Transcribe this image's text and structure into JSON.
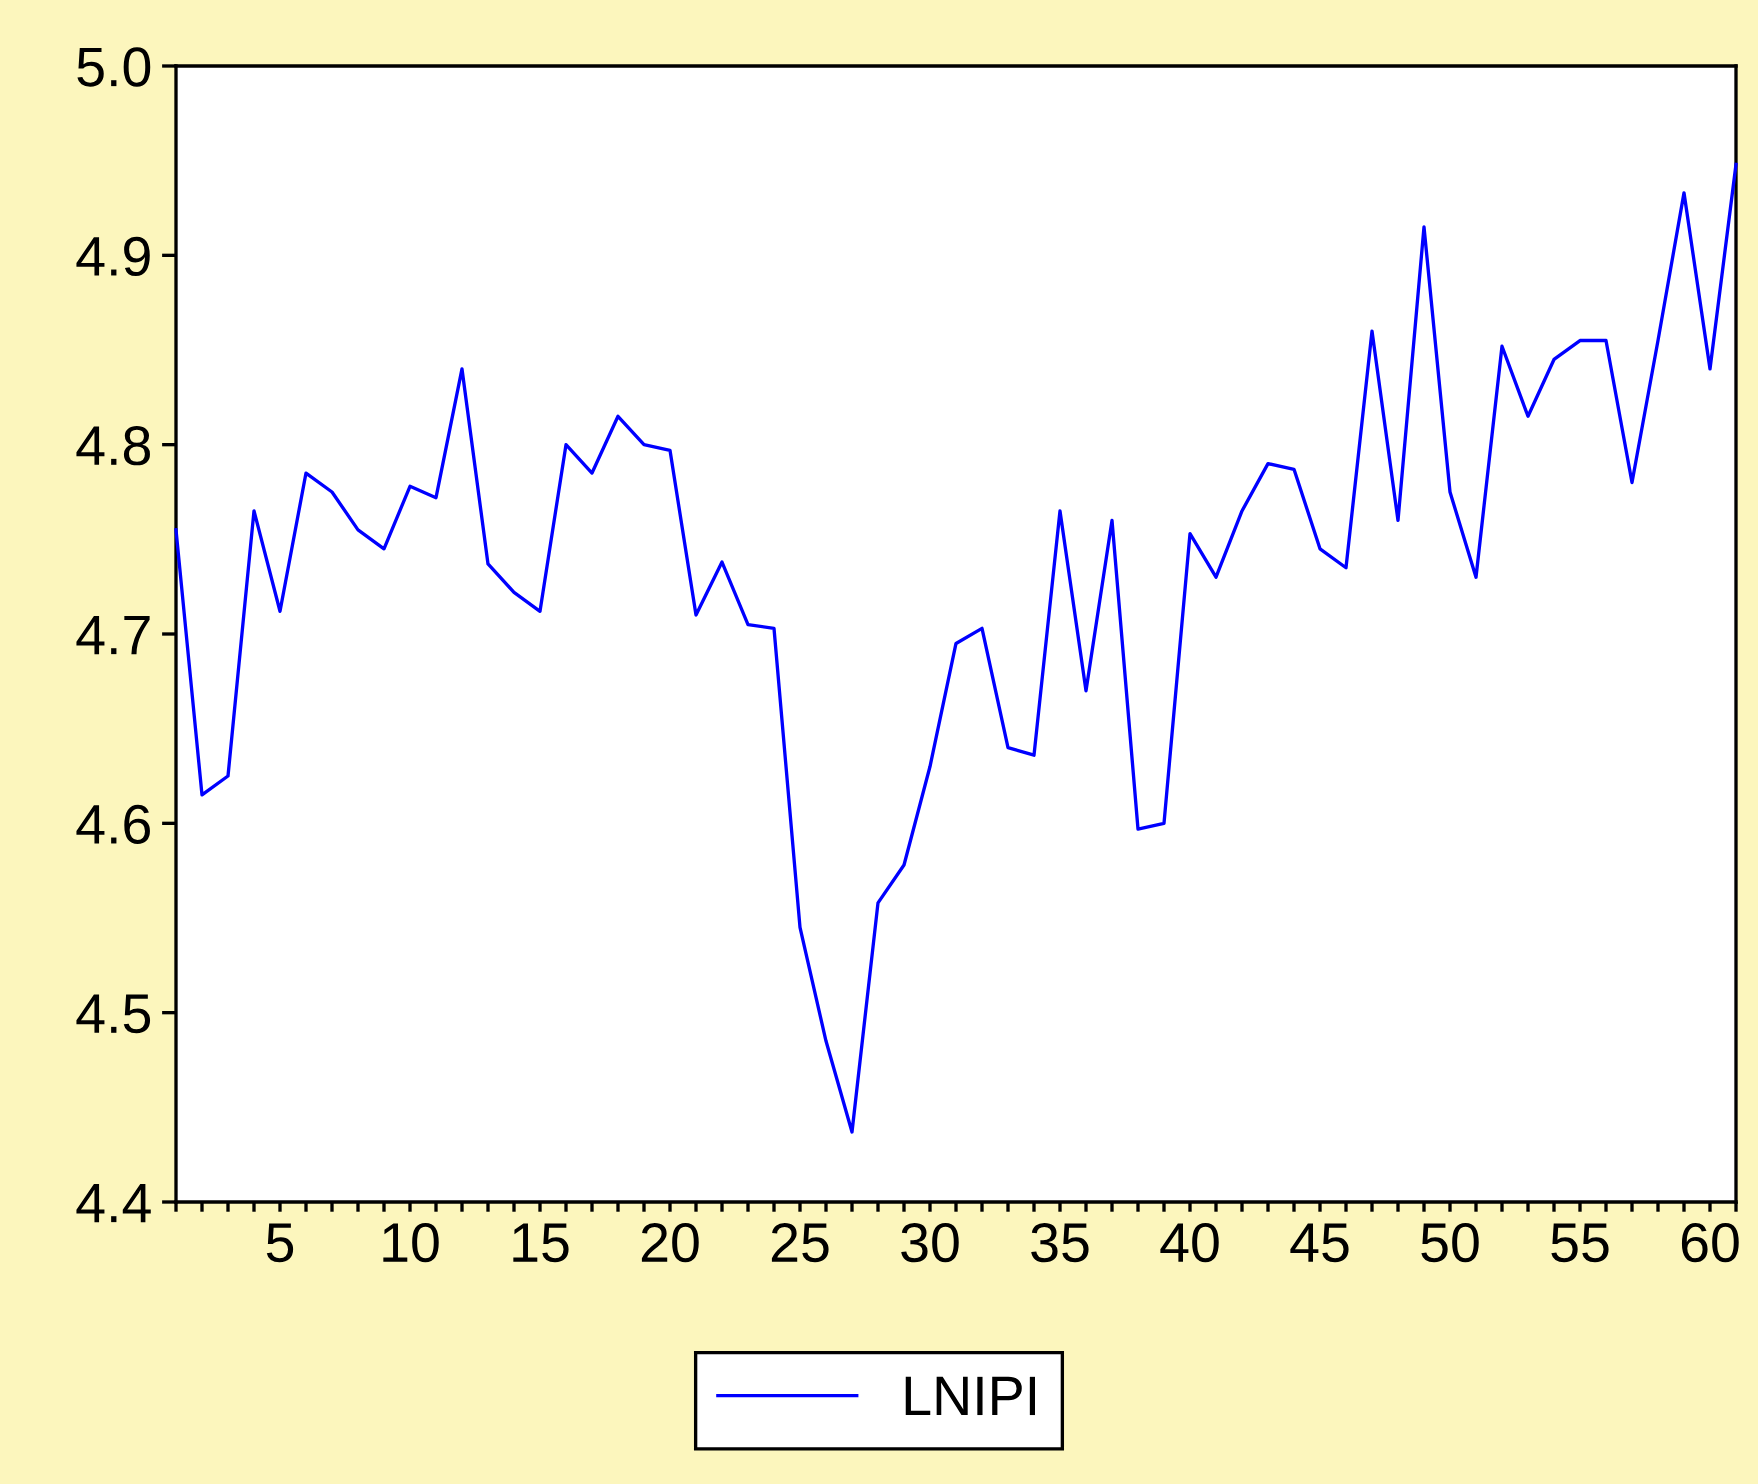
{
  "chart_data": {
    "type": "line",
    "x": [
      1,
      2,
      3,
      4,
      5,
      6,
      7,
      8,
      9,
      10,
      11,
      12,
      13,
      14,
      15,
      16,
      17,
      18,
      19,
      20,
      21,
      22,
      23,
      24,
      25,
      26,
      27,
      28,
      29,
      30,
      31,
      32,
      33,
      34,
      35,
      36,
      37,
      38,
      39,
      40,
      41,
      42,
      43,
      44,
      45,
      46,
      47,
      48,
      49,
      50,
      51,
      52,
      53,
      54,
      55,
      56,
      57,
      58,
      59,
      60,
      61
    ],
    "series": [
      {
        "name": "LNIPI",
        "color": "#0000ff",
        "values": [
          4.755,
          4.615,
          4.625,
          4.765,
          4.712,
          4.785,
          4.775,
          4.755,
          4.745,
          4.778,
          4.772,
          4.84,
          4.737,
          4.722,
          4.712,
          4.8,
          4.785,
          4.815,
          4.8,
          4.797,
          4.71,
          4.738,
          4.705,
          4.703,
          4.545,
          4.485,
          4.437,
          4.558,
          4.578,
          4.63,
          4.695,
          4.703,
          4.64,
          4.636,
          4.765,
          4.67,
          4.76,
          4.597,
          4.6,
          4.753,
          4.73,
          4.765,
          4.79,
          4.787,
          4.745,
          4.735,
          4.86,
          4.76,
          4.915,
          4.775,
          4.73,
          4.852,
          4.815,
          4.845,
          4.855,
          4.855,
          4.78,
          4.855,
          4.933,
          4.84,
          4.948
        ]
      }
    ],
    "xlim": [
      1,
      61
    ],
    "xticks": [
      {
        "value": 1,
        "label": null
      },
      {
        "value": 2,
        "label": null
      },
      {
        "value": 3,
        "label": null
      },
      {
        "value": 4,
        "label": null
      },
      5,
      {
        "value": 6,
        "label": null
      },
      {
        "value": 7,
        "label": null
      },
      {
        "value": 8,
        "label": null
      },
      {
        "value": 9,
        "label": null
      },
      10,
      {
        "value": 11,
        "label": null
      },
      {
        "value": 12,
        "label": null
      },
      {
        "value": 13,
        "label": null
      },
      {
        "value": 14,
        "label": null
      },
      15,
      {
        "value": 16,
        "label": null
      },
      {
        "value": 17,
        "label": null
      },
      {
        "value": 18,
        "label": null
      },
      {
        "value": 19,
        "label": null
      },
      20,
      {
        "value": 21,
        "label": null
      },
      {
        "value": 22,
        "label": null
      },
      {
        "value": 23,
        "label": null
      },
      {
        "value": 24,
        "label": null
      },
      25,
      {
        "value": 26,
        "label": null
      },
      {
        "value": 27,
        "label": null
      },
      {
        "value": 28,
        "label": null
      },
      {
        "value": 29,
        "label": null
      },
      30,
      {
        "value": 31,
        "label": null
      },
      {
        "value": 32,
        "label": null
      },
      {
        "value": 33,
        "label": null
      },
      {
        "value": 34,
        "label": null
      },
      35,
      {
        "value": 36,
        "label": null
      },
      {
        "value": 37,
        "label": null
      },
      {
        "value": 38,
        "label": null
      },
      {
        "value": 39,
        "label": null
      },
      40,
      {
        "value": 41,
        "label": null
      },
      {
        "value": 42,
        "label": null
      },
      {
        "value": 43,
        "label": null
      },
      {
        "value": 44,
        "label": null
      },
      45,
      {
        "value": 46,
        "label": null
      },
      {
        "value": 47,
        "label": null
      },
      {
        "value": 48,
        "label": null
      },
      {
        "value": 49,
        "label": null
      },
      50,
      {
        "value": 51,
        "label": null
      },
      {
        "value": 52,
        "label": null
      },
      {
        "value": 53,
        "label": null
      },
      {
        "value": 54,
        "label": null
      },
      55,
      {
        "value": 56,
        "label": null
      },
      {
        "value": 57,
        "label": null
      },
      {
        "value": 58,
        "label": null
      },
      {
        "value": 59,
        "label": null
      },
      60,
      {
        "value": 61,
        "label": null
      }
    ],
    "ylim": [
      4.4,
      5.0
    ],
    "yticks": [
      4.4,
      4.5,
      4.6,
      4.7,
      4.8,
      4.9,
      {
        "value": 5.0,
        "label": "5.0"
      }
    ],
    "grid": false,
    "legend": "bottom",
    "marker": "none",
    "line_style": "solid"
  }
}
